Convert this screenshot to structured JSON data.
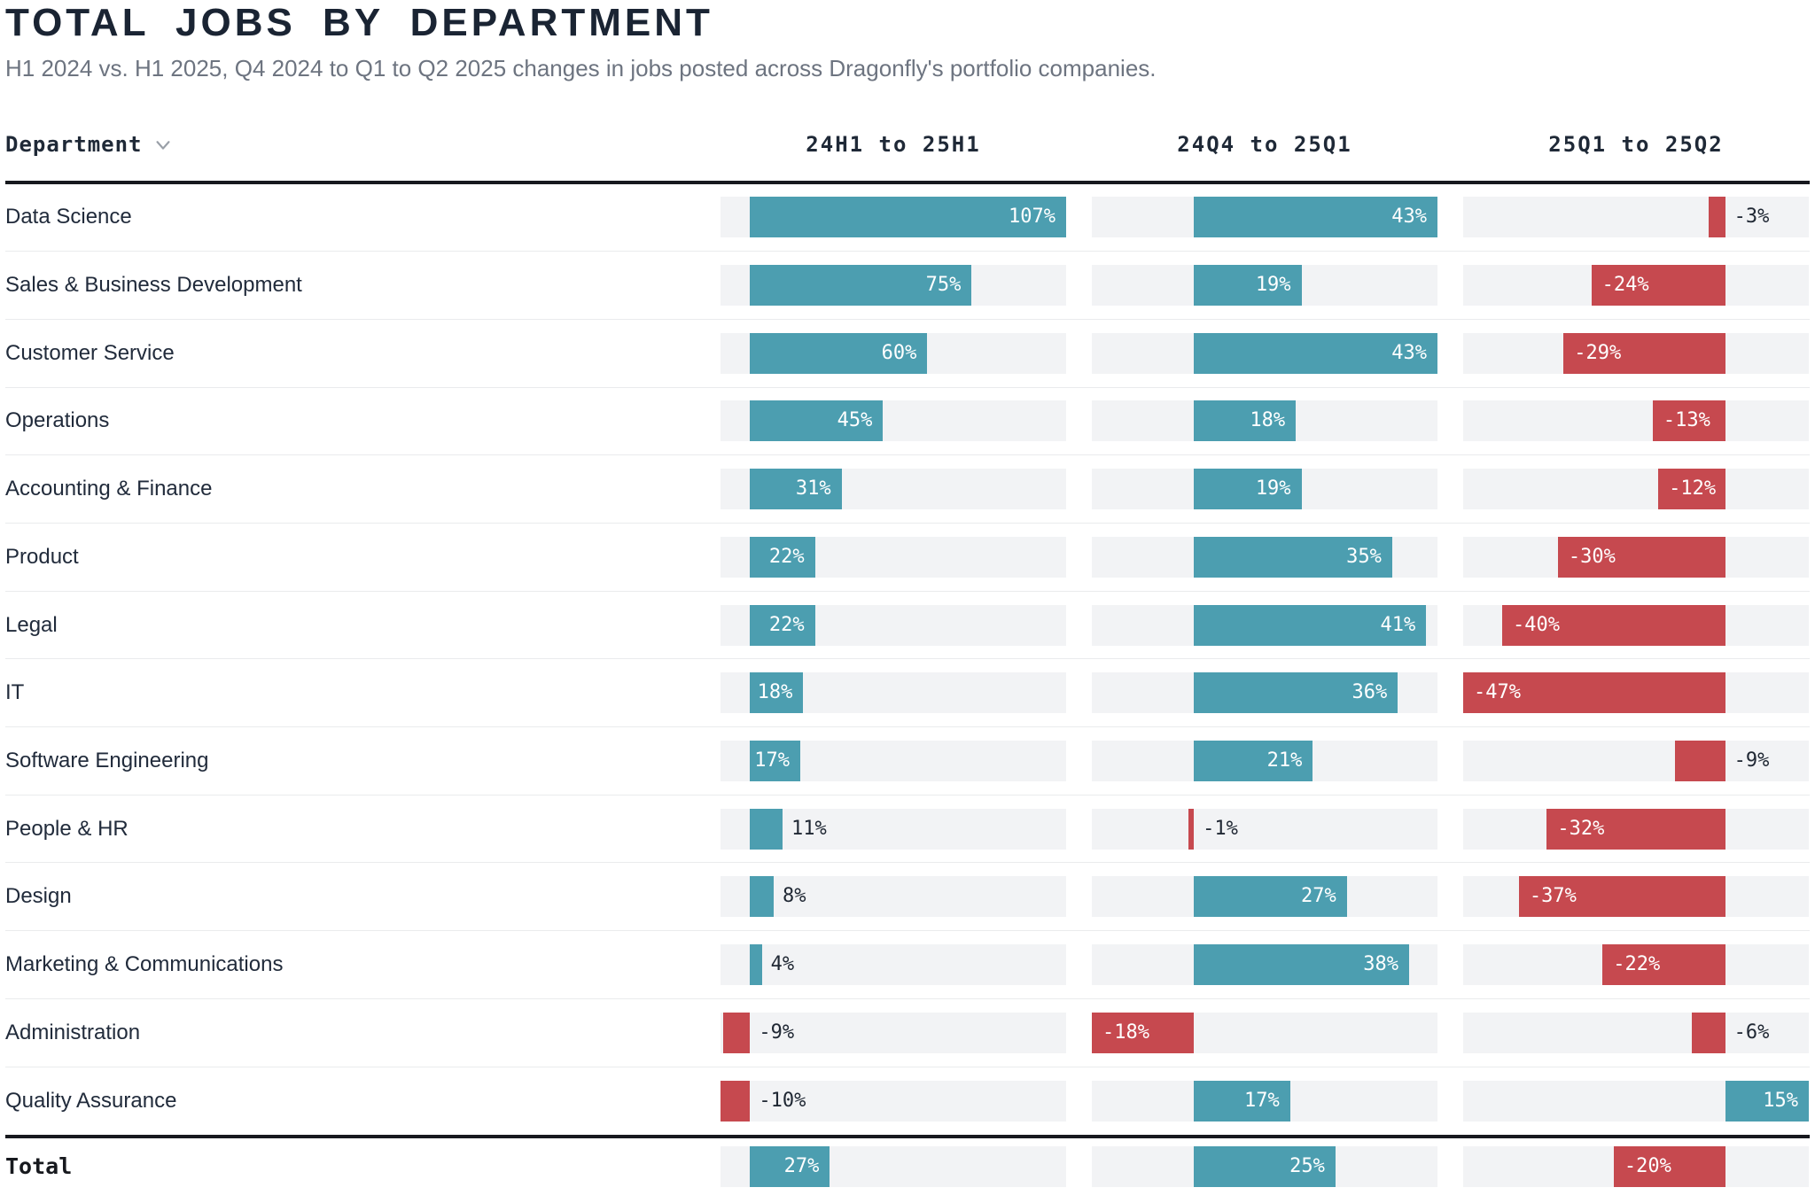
{
  "header": {
    "title": "TOTAL JOBS BY DEPARTMENT",
    "subtitle": "H1 2024 vs. H1 2025, Q4 2024 to Q1 to Q2 2025 changes in jobs posted across Dragonfly's portfolio companies."
  },
  "table": {
    "department_header": "Department",
    "sort_icon": "chevron-down-icon",
    "total_label": "Total"
  },
  "colors": {
    "positive_bar": "#4C9EB0",
    "negative_bar": "#C6494F",
    "track": "#F2F3F5",
    "header_rule": "#17191E"
  },
  "chart_data": {
    "type": "bar",
    "orientation": "horizontal",
    "value_suffix": "%",
    "grid": false,
    "legend": false,
    "title": "TOTAL JOBS BY DEPARTMENT",
    "categories": [
      "Data Science",
      "Sales & Business Development",
      "Customer Service",
      "Operations",
      "Accounting & Finance",
      "Product",
      "Legal",
      "IT",
      "Software Engineering",
      "People & HR",
      "Design",
      "Marketing & Communications",
      "Administration",
      "Quality Assurance"
    ],
    "series": [
      {
        "name": "24H1 to 25H1",
        "values": [
          107,
          75,
          60,
          45,
          31,
          22,
          22,
          18,
          17,
          11,
          8,
          4,
          -9,
          -10
        ],
        "total": 27,
        "axis_range": [
          -10,
          107
        ]
      },
      {
        "name": "24Q4 to 25Q1",
        "values": [
          43,
          19,
          43,
          18,
          19,
          35,
          41,
          36,
          21,
          -1,
          27,
          38,
          -18,
          17
        ],
        "total": 25,
        "axis_range": [
          -18,
          43
        ]
      },
      {
        "name": "25Q1 to 25Q2",
        "values": [
          -3,
          -24,
          -29,
          -13,
          -12,
          -30,
          -40,
          -47,
          -9,
          -32,
          -37,
          -22,
          -6,
          15
        ],
        "total": -20,
        "axis_range": [
          -47,
          15
        ]
      }
    ]
  }
}
